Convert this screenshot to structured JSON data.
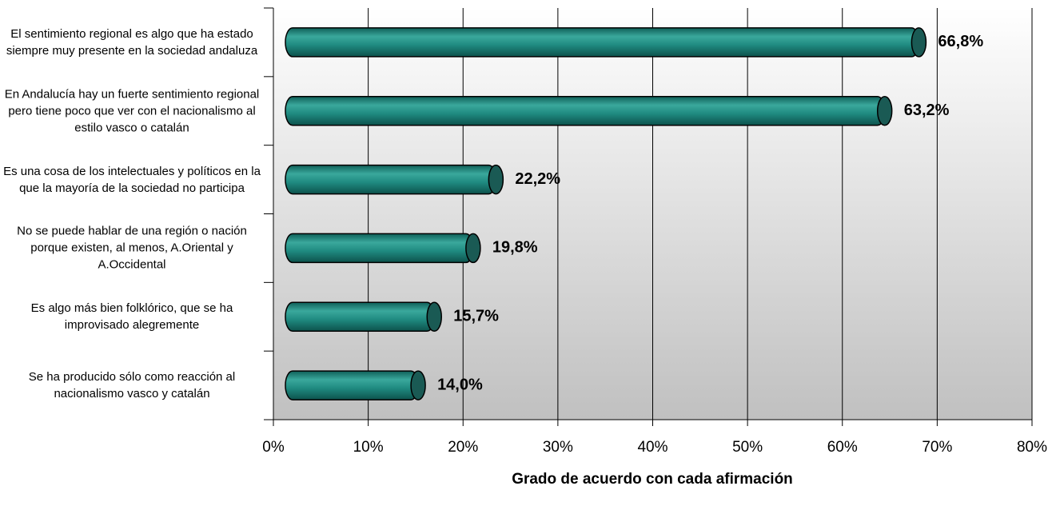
{
  "chart_data": {
    "type": "bar",
    "orientation": "horizontal",
    "x_label": "Grado de acuerdo con cada afirmación",
    "categories": [
      "El sentimiento regional es algo que ha estado siempre muy presente en la sociedad andaluza",
      "En Andalucía hay un fuerte sentimiento regional pero tiene poco que ver con el nacionalismo al estilo vasco o catalán",
      "Es una cosa de los intelectuales y políticos en la que la mayoría de la sociedad no participa",
      "No se puede hablar de una región o nación porque existen, al menos, A.Oriental y A.Occidental",
      "Es algo más bien folklórico, que se ha improvisado alegremente",
      "Se ha producido sólo como reacción al nacionalismo vasco y catalán"
    ],
    "values": [
      66.8,
      63.2,
      22.2,
      19.8,
      15.7,
      14.0
    ],
    "value_labels": [
      "66,8%",
      "63,2%",
      "22,2%",
      "19,8%",
      "15,7%",
      "14,0%"
    ],
    "color": "#1f8a80",
    "xlim": [
      0,
      80
    ],
    "xticks": [
      {
        "value": 0,
        "label": "0%"
      },
      {
        "value": 10,
        "label": "10%"
      },
      {
        "value": 20,
        "label": "20%"
      },
      {
        "value": 30,
        "label": "30%"
      },
      {
        "value": 40,
        "label": "40%"
      },
      {
        "value": 50,
        "label": "50%"
      },
      {
        "value": 60,
        "label": "60%"
      },
      {
        "value": 70,
        "label": "70%"
      },
      {
        "value": 80,
        "label": "80%"
      }
    ],
    "grid": true
  }
}
